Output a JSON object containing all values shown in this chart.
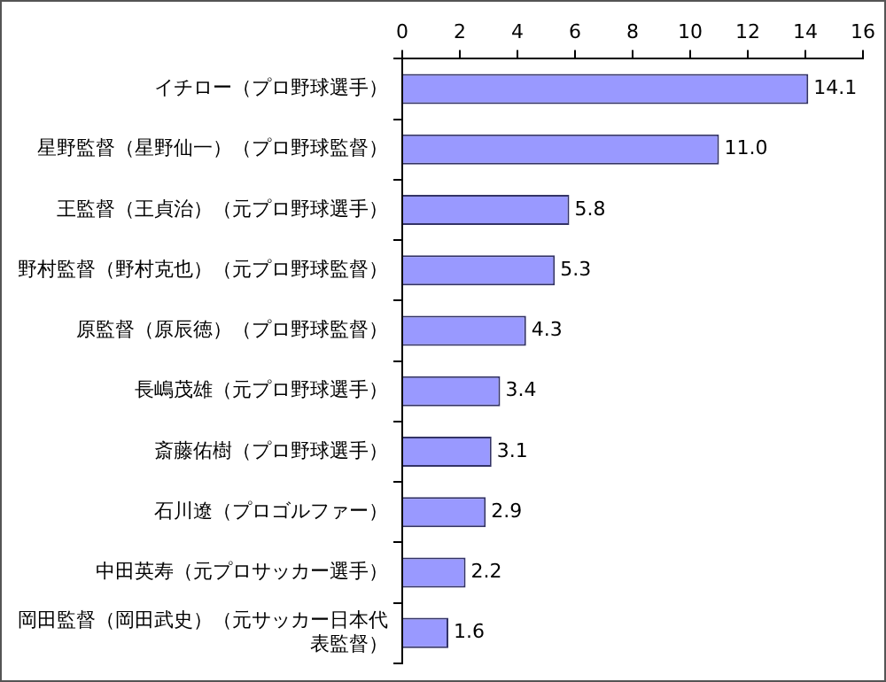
{
  "chart_data": {
    "type": "bar",
    "orientation": "horizontal",
    "categories": [
      "イチロー（プロ野球選手）",
      "星野監督（星野仙一）（プロ野球監督）",
      "王監督（王貞治）（元プロ野球選手）",
      "野村監督（野村克也）（元プロ野球監督）",
      "原監督（原辰徳）（プロ野球監督）",
      "長嶋茂雄（元プロ野球選手）",
      "斎藤佑樹（プロ野球選手）",
      "石川遼（プロゴルファー）",
      "中田英寿（元プロサッカー選手）",
      "岡田監督（岡田武史）（元サッカー日本代表監督）"
    ],
    "values": [
      14.1,
      11.0,
      5.8,
      5.3,
      4.3,
      3.4,
      3.1,
      2.9,
      2.2,
      1.6
    ],
    "value_labels": [
      "14.1",
      "11.0",
      "5.8",
      "5.3",
      "4.3",
      "3.4",
      "3.1",
      "2.9",
      "2.2",
      "1.6"
    ],
    "color": "#9999ff",
    "xlim": [
      0,
      16
    ],
    "xticks": [
      0,
      2,
      4,
      6,
      8,
      10,
      12,
      14,
      16
    ],
    "grid": false,
    "legend": false
  }
}
